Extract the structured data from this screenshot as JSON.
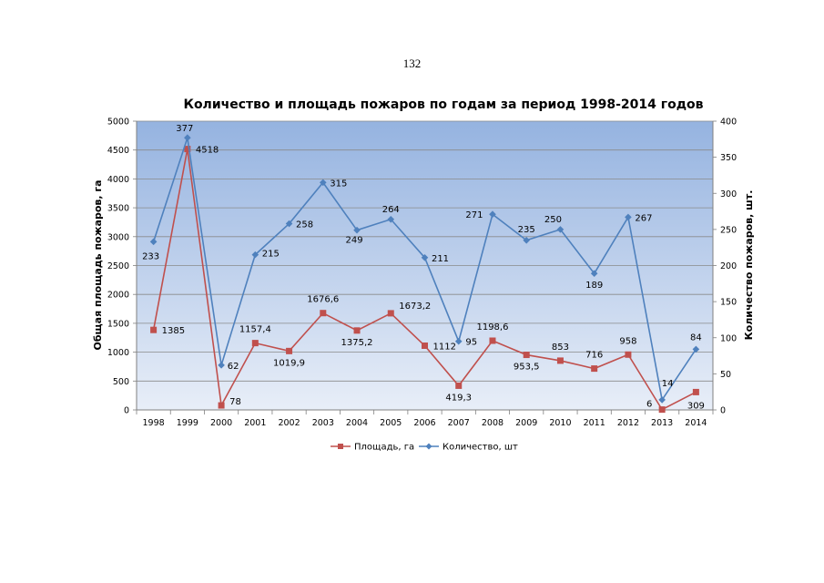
{
  "page": {
    "number": "132"
  },
  "chart_data": {
    "type": "line",
    "title": "Количество и площадь пожаров по годам за период 1998-2014 годов",
    "ylabel_left": "Общая площадь пожаров, га",
    "ylabel_right": "Количество пожаров, шт.",
    "ylim_left": [
      0,
      5000
    ],
    "ylim_right": [
      0,
      400
    ],
    "yticks_left": [
      "0",
      "500",
      "1000",
      "1500",
      "2000",
      "2500",
      "3000",
      "3500",
      "4000",
      "4500",
      "5000"
    ],
    "yticks_right": [
      "0",
      "50",
      "100",
      "150",
      "200",
      "250",
      "300",
      "350",
      "400"
    ],
    "categories": [
      "1998",
      "1999",
      "2000",
      "2001",
      "2002",
      "2003",
      "2004",
      "2005",
      "2006",
      "2007",
      "2008",
      "2009",
      "2010",
      "2011",
      "2012",
      "2013",
      "2014"
    ],
    "grid": true,
    "legend_position": "bottom",
    "series": [
      {
        "name": "Площадь, га",
        "axis": "left",
        "color": "#c0504d",
        "marker": "square",
        "values": [
          1385,
          4518,
          78,
          1157.4,
          1019.9,
          1676.6,
          1375.2,
          1673.2,
          1112,
          419.3,
          1198.6,
          953.5,
          853,
          716,
          958,
          6,
          309
        ],
        "labels": [
          "1385",
          "4518",
          "78",
          "1157,4",
          "1019,9",
          "1676,6",
          "1375,2",
          "1673,2",
          "1112",
          "419,3",
          "1198,6",
          "953,5",
          "853",
          "716",
          "958",
          "6",
          "309"
        ]
      },
      {
        "name": "Количество, шт",
        "axis": "right",
        "color": "#4f81bd",
        "marker": "diamond",
        "values": [
          233,
          377,
          62,
          215,
          258,
          315,
          249,
          264,
          211,
          95,
          271,
          235,
          250,
          189,
          267,
          14,
          84
        ],
        "labels": [
          "233",
          "377",
          "62",
          "215",
          "258",
          "315",
          "249",
          "264",
          "211",
          "95",
          "271",
          "235",
          "250",
          "189",
          "267",
          "14",
          "84"
        ]
      }
    ]
  }
}
